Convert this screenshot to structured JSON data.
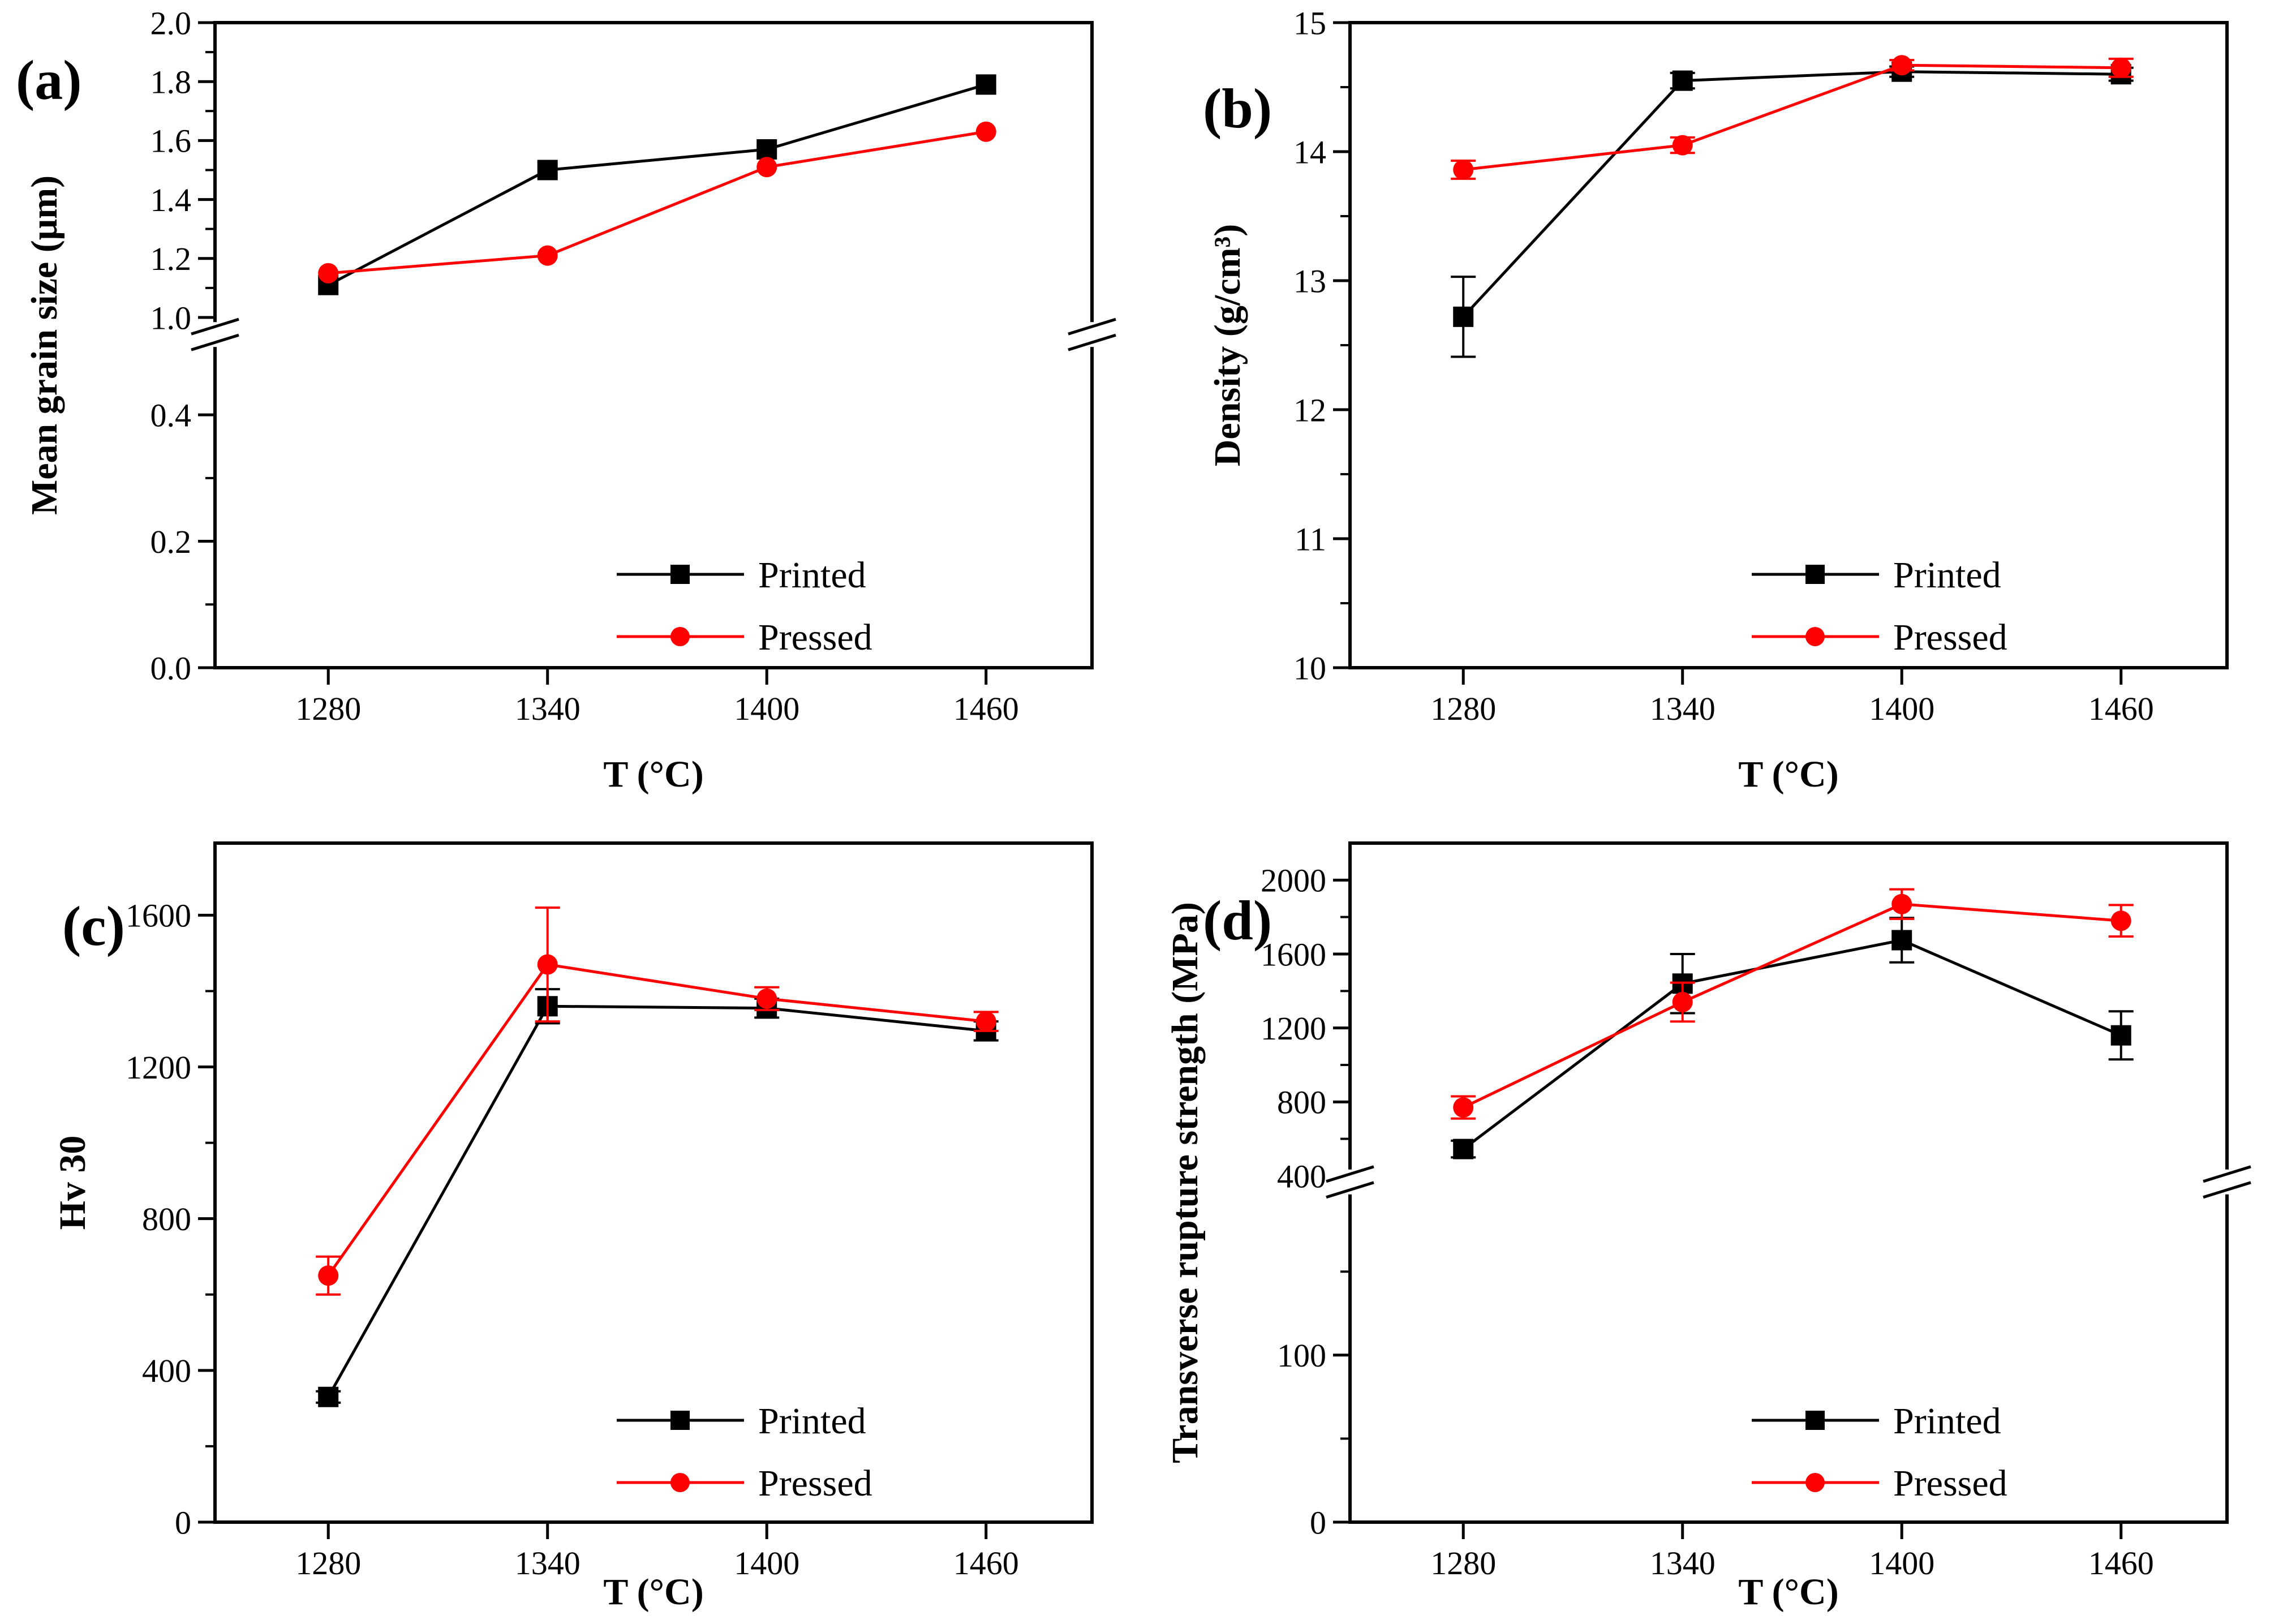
{
  "figure": {
    "background": "#ffffff",
    "description": "Four line charts comparing Printed and Pressed samples versus sintering temperature"
  },
  "colors": {
    "printed": "#000000",
    "pressed": "#ff0000"
  },
  "legend": {
    "printed_label": "Printed",
    "pressed_label": "Pressed"
  },
  "chart_data": [
    {
      "id": "a",
      "panel_label": "(a)",
      "type": "line",
      "xlabel": "T (°C)",
      "ylabel": "Mean grain size (μm)",
      "x": [
        1280,
        1340,
        1400,
        1460
      ],
      "x_tick_labels": [
        "1280",
        "1340",
        "1400",
        "1460"
      ],
      "xlim": [
        1249,
        1489
      ],
      "legend_position": "lower right",
      "series": [
        {
          "name": "Printed",
          "color": "#000000",
          "marker": "square",
          "values": [
            1.11,
            1.5,
            1.57,
            1.79
          ],
          "errors": [
            0,
            0,
            0,
            0
          ]
        },
        {
          "name": "Pressed",
          "color": "#ff0000",
          "marker": "circle",
          "values": [
            1.15,
            1.21,
            1.51,
            1.63
          ],
          "errors": [
            0,
            0,
            0,
            0
          ]
        }
      ],
      "y_axis": {
        "break_frac": 0.4835,
        "segments": [
          {
            "v0": 0.0,
            "v1": 0.5,
            "f0": 1.0,
            "f1": 0.51,
            "majors": [
              {
                "v": 0.0,
                "label": "0.0"
              },
              {
                "v": 0.2,
                "label": "0.2"
              },
              {
                "v": 0.4,
                "label": "0.4"
              }
            ],
            "minors": [
              0.1,
              0.3
            ]
          },
          {
            "v0": 1.0,
            "v1": 2.0,
            "f0": 0.457,
            "f1": 0.0,
            "majors": [
              {
                "v": 1.0,
                "label": "1.0"
              },
              {
                "v": 1.2,
                "label": "1.2"
              },
              {
                "v": 1.4,
                "label": "1.4"
              },
              {
                "v": 1.6,
                "label": "1.6"
              },
              {
                "v": 1.8,
                "label": "1.8"
              },
              {
                "v": 2.0,
                "label": "2.0"
              }
            ],
            "minors": [
              1.1,
              1.3,
              1.5,
              1.7,
              1.9
            ]
          }
        ]
      }
    },
    {
      "id": "b",
      "panel_label": "(b)",
      "type": "line",
      "xlabel": "T (°C)",
      "ylabel": "Density (g/cm³)",
      "x": [
        1280,
        1340,
        1400,
        1460
      ],
      "x_tick_labels": [
        "1280",
        "1340",
        "1400",
        "1460"
      ],
      "xlim": [
        1249,
        1489
      ],
      "legend_position": "lower right",
      "series": [
        {
          "name": "Printed",
          "color": "#000000",
          "marker": "square",
          "values": [
            12.72,
            14.55,
            14.62,
            14.6
          ],
          "errors": [
            0.31,
            0.06,
            0.04,
            0.05
          ]
        },
        {
          "name": "Pressed",
          "color": "#ff0000",
          "marker": "circle",
          "values": [
            13.86,
            14.05,
            14.67,
            14.65
          ],
          "errors": [
            0.07,
            0.06,
            0.04,
            0.07
          ]
        }
      ],
      "y_axis": {
        "break_frac": null,
        "segments": [
          {
            "v0": 10,
            "v1": 15,
            "f0": 1.0,
            "f1": 0.0,
            "majors": [
              {
                "v": 10,
                "label": "10"
              },
              {
                "v": 11,
                "label": "11"
              },
              {
                "v": 12,
                "label": "12"
              },
              {
                "v": 13,
                "label": "13"
              },
              {
                "v": 14,
                "label": "14"
              },
              {
                "v": 15,
                "label": "15"
              }
            ],
            "minors": [
              10.5,
              11.5,
              12.5,
              13.5,
              14.5
            ]
          }
        ]
      }
    },
    {
      "id": "c",
      "panel_label": "(c)",
      "type": "line",
      "xlabel": "T (°C)",
      "ylabel": "Hv 30",
      "x": [
        1280,
        1340,
        1400,
        1460
      ],
      "x_tick_labels": [
        "1280",
        "1340",
        "1400",
        "1460"
      ],
      "xlim": [
        1249,
        1489
      ],
      "legend_position": "lower right",
      "series": [
        {
          "name": "Printed",
          "color": "#000000",
          "marker": "square",
          "values": [
            330,
            1360,
            1355,
            1295
          ],
          "errors": [
            15,
            45,
            25,
            25
          ]
        },
        {
          "name": "Pressed",
          "color": "#ff0000",
          "marker": "circle",
          "values": [
            650,
            1470,
            1380,
            1320
          ],
          "errors": [
            50,
            150,
            30,
            25
          ]
        }
      ],
      "y_axis": {
        "break_frac": null,
        "segments": [
          {
            "v0": 0,
            "v1": 1790,
            "f0": 1.0,
            "f1": 0.0,
            "majors": [
              {
                "v": 0,
                "label": "0"
              },
              {
                "v": 400,
                "label": "400"
              },
              {
                "v": 800,
                "label": "800"
              },
              {
                "v": 1200,
                "label": "1200"
              },
              {
                "v": 1600,
                "label": "1600"
              }
            ],
            "minors": [
              200,
              600,
              1000,
              1400
            ]
          }
        ]
      }
    },
    {
      "id": "d",
      "panel_label": "(d)",
      "type": "line",
      "xlabel": "T (°C)",
      "ylabel": "Transverse rupture strength (MPa)",
      "x": [
        1280,
        1340,
        1400,
        1460
      ],
      "x_tick_labels": [
        "1280",
        "1340",
        "1400",
        "1460"
      ],
      "xlim": [
        1249,
        1489
      ],
      "legend_position": "lower right",
      "series": [
        {
          "name": "Printed",
          "color": "#000000",
          "marker": "square",
          "values": [
            545,
            1440,
            1675,
            1160
          ],
          "errors": [
            45,
            160,
            120,
            130
          ]
        },
        {
          "name": "Pressed",
          "color": "#ff0000",
          "marker": "circle",
          "values": [
            770,
            1340,
            1870,
            1780
          ],
          "errors": [
            60,
            105,
            80,
            85
          ]
        }
      ],
      "y_axis": {
        "break_frac": 0.499,
        "segments": [
          {
            "v0": 0,
            "v1": 200,
            "f0": 1.0,
            "f1": 0.508,
            "majors": [
              {
                "v": 0,
                "label": "0"
              },
              {
                "v": 100,
                "label": "100"
              }
            ],
            "minors": [
              50,
              150
            ]
          },
          {
            "v0": 400,
            "v1": 2200,
            "f0": 0.49,
            "f1": 0.0,
            "majors": [
              {
                "v": 400,
                "label": "400"
              },
              {
                "v": 800,
                "label": "800"
              },
              {
                "v": 1200,
                "label": "1200"
              },
              {
                "v": 1600,
                "label": "1600"
              },
              {
                "v": 2000,
                "label": "2000"
              }
            ],
            "minors": [
              600,
              1000,
              1400,
              1800
            ]
          }
        ]
      }
    }
  ]
}
